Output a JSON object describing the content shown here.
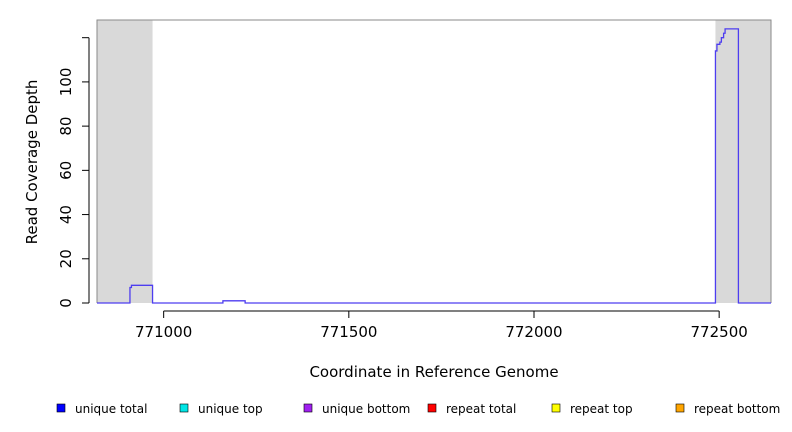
{
  "chart_data": {
    "type": "line",
    "xlabel": "Coordinate in Reference Genome",
    "ylabel": "Read Coverage Depth",
    "xlim": [
      770820,
      772640
    ],
    "ylim": [
      0,
      128
    ],
    "x_ticks": [
      771000,
      771500,
      772000,
      772500
    ],
    "y_ticks": [
      0,
      20,
      40,
      60,
      80,
      100
    ],
    "grid": false,
    "shaded_regions": [
      {
        "x0": 770820,
        "x1": 770970
      },
      {
        "x0": 772490,
        "x1": 772640
      }
    ],
    "series": [
      {
        "name": "unique total",
        "color": "#4d3df0",
        "points": [
          [
            770820,
            0
          ],
          [
            770909,
            0
          ],
          [
            770909,
            7
          ],
          [
            770913,
            7
          ],
          [
            770913,
            8
          ],
          [
            770970,
            8
          ],
          [
            770970,
            0
          ],
          [
            771000,
            0
          ],
          [
            771160,
            0
          ],
          [
            771160,
            1
          ],
          [
            771220,
            1
          ],
          [
            771220,
            0
          ],
          [
            772490,
            0
          ],
          [
            772490,
            114
          ],
          [
            772494,
            114
          ],
          [
            772494,
            117
          ],
          [
            772502,
            117
          ],
          [
            772502,
            118
          ],
          [
            772506,
            118
          ],
          [
            772506,
            120
          ],
          [
            772512,
            120
          ],
          [
            772512,
            122
          ],
          [
            772516,
            122
          ],
          [
            772516,
            124
          ],
          [
            772552,
            124
          ],
          [
            772552,
            0
          ],
          [
            772640,
            0
          ]
        ]
      }
    ],
    "legend": {
      "placement": "bottom",
      "entries": [
        {
          "label": "unique total",
          "color": "#0000ff"
        },
        {
          "label": "unique top",
          "color": "#00e5e5"
        },
        {
          "label": "unique bottom",
          "color": "#a020f0"
        },
        {
          "label": "repeat total",
          "color": "#ff0000"
        },
        {
          "label": "repeat top",
          "color": "#ffff00"
        },
        {
          "label": "repeat bottom",
          "color": "#ffa500"
        }
      ]
    }
  }
}
